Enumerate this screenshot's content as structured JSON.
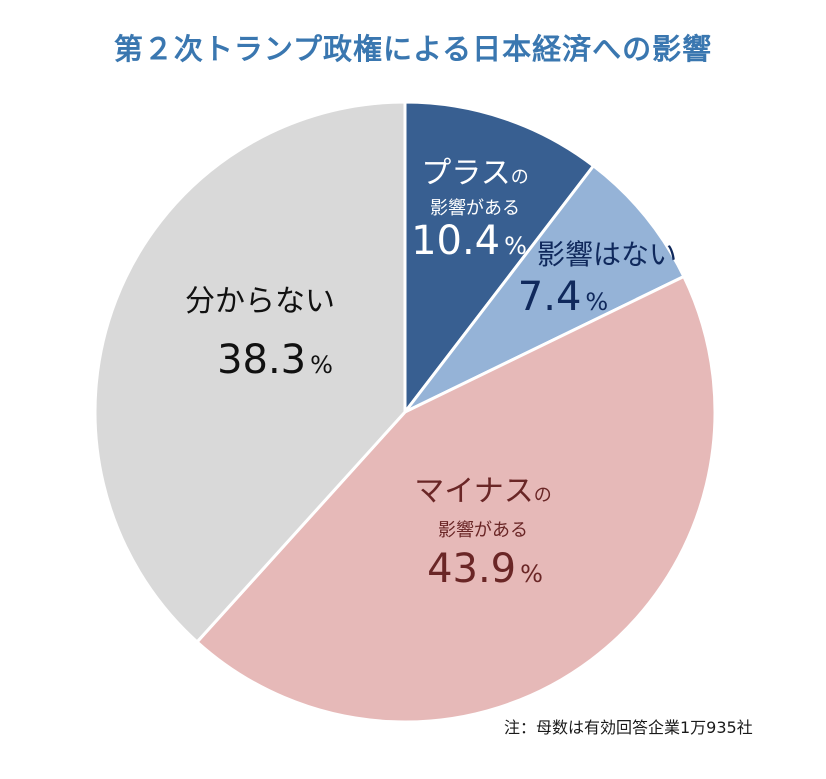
{
  "chart_data": {
    "type": "pie",
    "title": "第２次トランプ政権による日本経済への影響",
    "start": "12 o'clock",
    "direction": "clockwise",
    "slices": [
      {
        "key": "plus",
        "label_main": "プラス",
        "label_suffix": "の",
        "label_sub": "影響がある",
        "value": 10.4,
        "value_text": "10.4",
        "unit": "%",
        "color": "#385F91",
        "text_color": "#FFFFFF"
      },
      {
        "key": "none",
        "label_main": "影響はない",
        "label_suffix": "",
        "label_sub": "",
        "value": 7.4,
        "value_text": "7.4",
        "unit": "%",
        "color": "#95B3D7",
        "text_color": "#10295C"
      },
      {
        "key": "minus",
        "label_main": "マイナス",
        "label_suffix": "の",
        "label_sub": "影響がある",
        "value": 43.9,
        "value_text": "43.9",
        "unit": "%",
        "color": "#E6B9B8",
        "text_color": "#6A2626"
      },
      {
        "key": "unknown",
        "label_main": "分からない",
        "label_suffix": "",
        "label_sub": "",
        "value": 38.3,
        "value_text": "38.3",
        "unit": "%",
        "color": "#D9D9D9",
        "text_color": "#111111"
      }
    ],
    "note": "注：母数は有効回答企業1万935社"
  },
  "colors": {
    "title": "#3A77B0",
    "separator": "#FFFFFF"
  }
}
